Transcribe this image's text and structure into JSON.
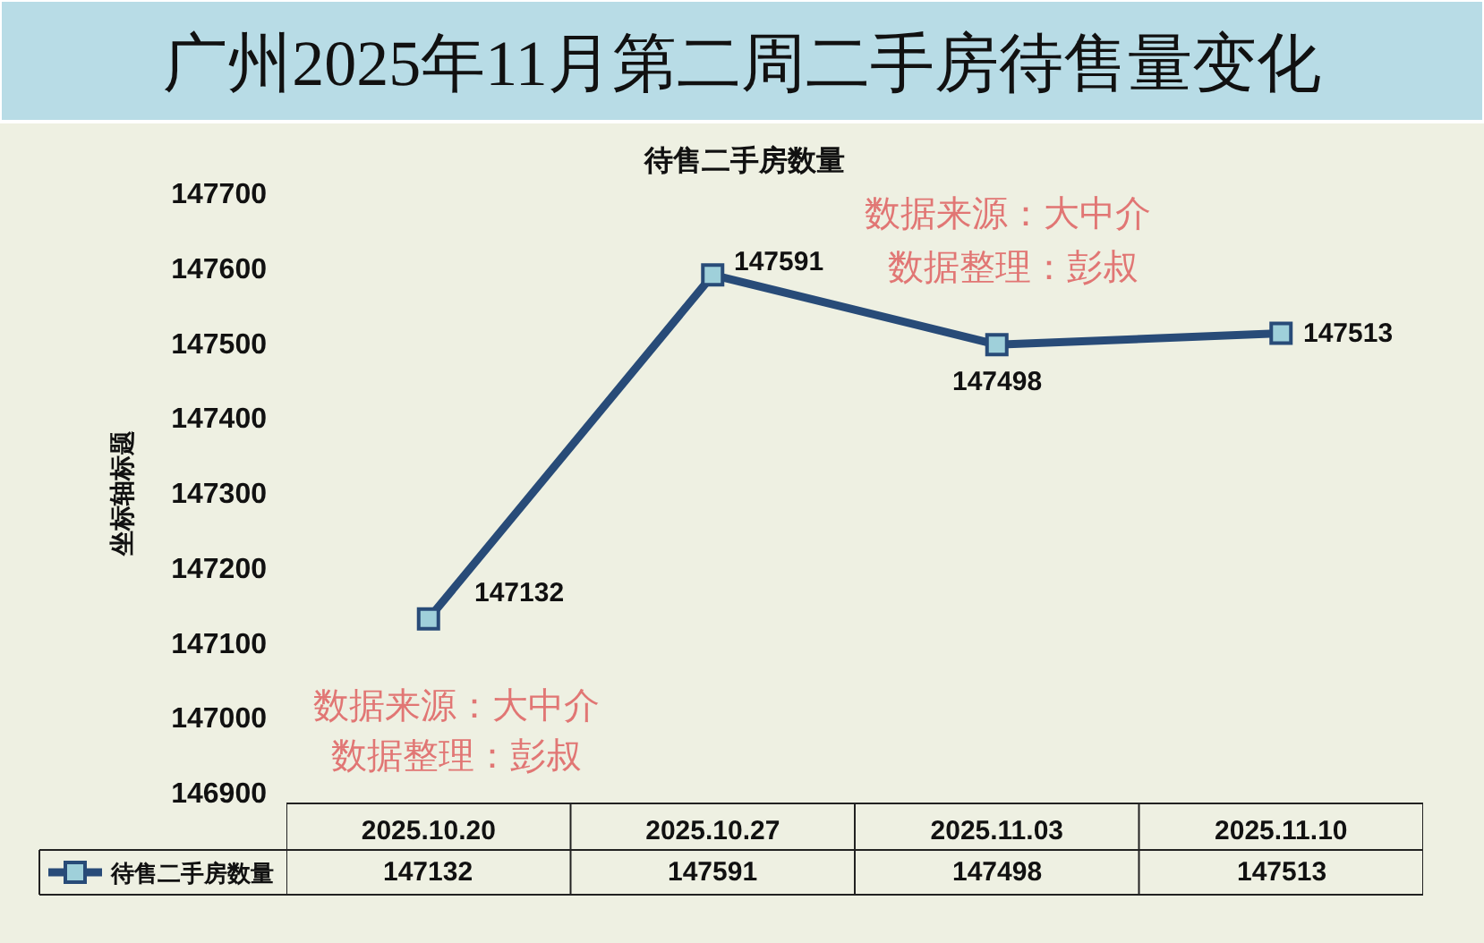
{
  "chart_data": {
    "type": "line",
    "title": "广州2025年11月第二周二手房待售量变化",
    "subtitle": "待售二手房数量",
    "ylabel": "坐标轴标题",
    "annotations": [
      "数据来源：大中介",
      "数据整理：彭叔",
      "数据来源：大中介",
      "数据整理：彭叔",
      "147132",
      "147591",
      "147498",
      "147513"
    ],
    "categories": [
      "2025.10.20",
      "2025.10.27",
      "2025.11.03",
      "2025.11.10"
    ],
    "series": [
      {
        "name": "待售二手房数量",
        "color": "#284b78",
        "values": [
          147132,
          147591,
          147498,
          147513
        ]
      }
    ],
    "ylim": [
      146900,
      147700
    ],
    "yticks": [
      146900,
      147000,
      147100,
      147200,
      147300,
      147400,
      147500,
      147600,
      147700
    ],
    "legend": "bottom left",
    "marker": "square",
    "line_style": "solid",
    "data_labels": true
  }
}
